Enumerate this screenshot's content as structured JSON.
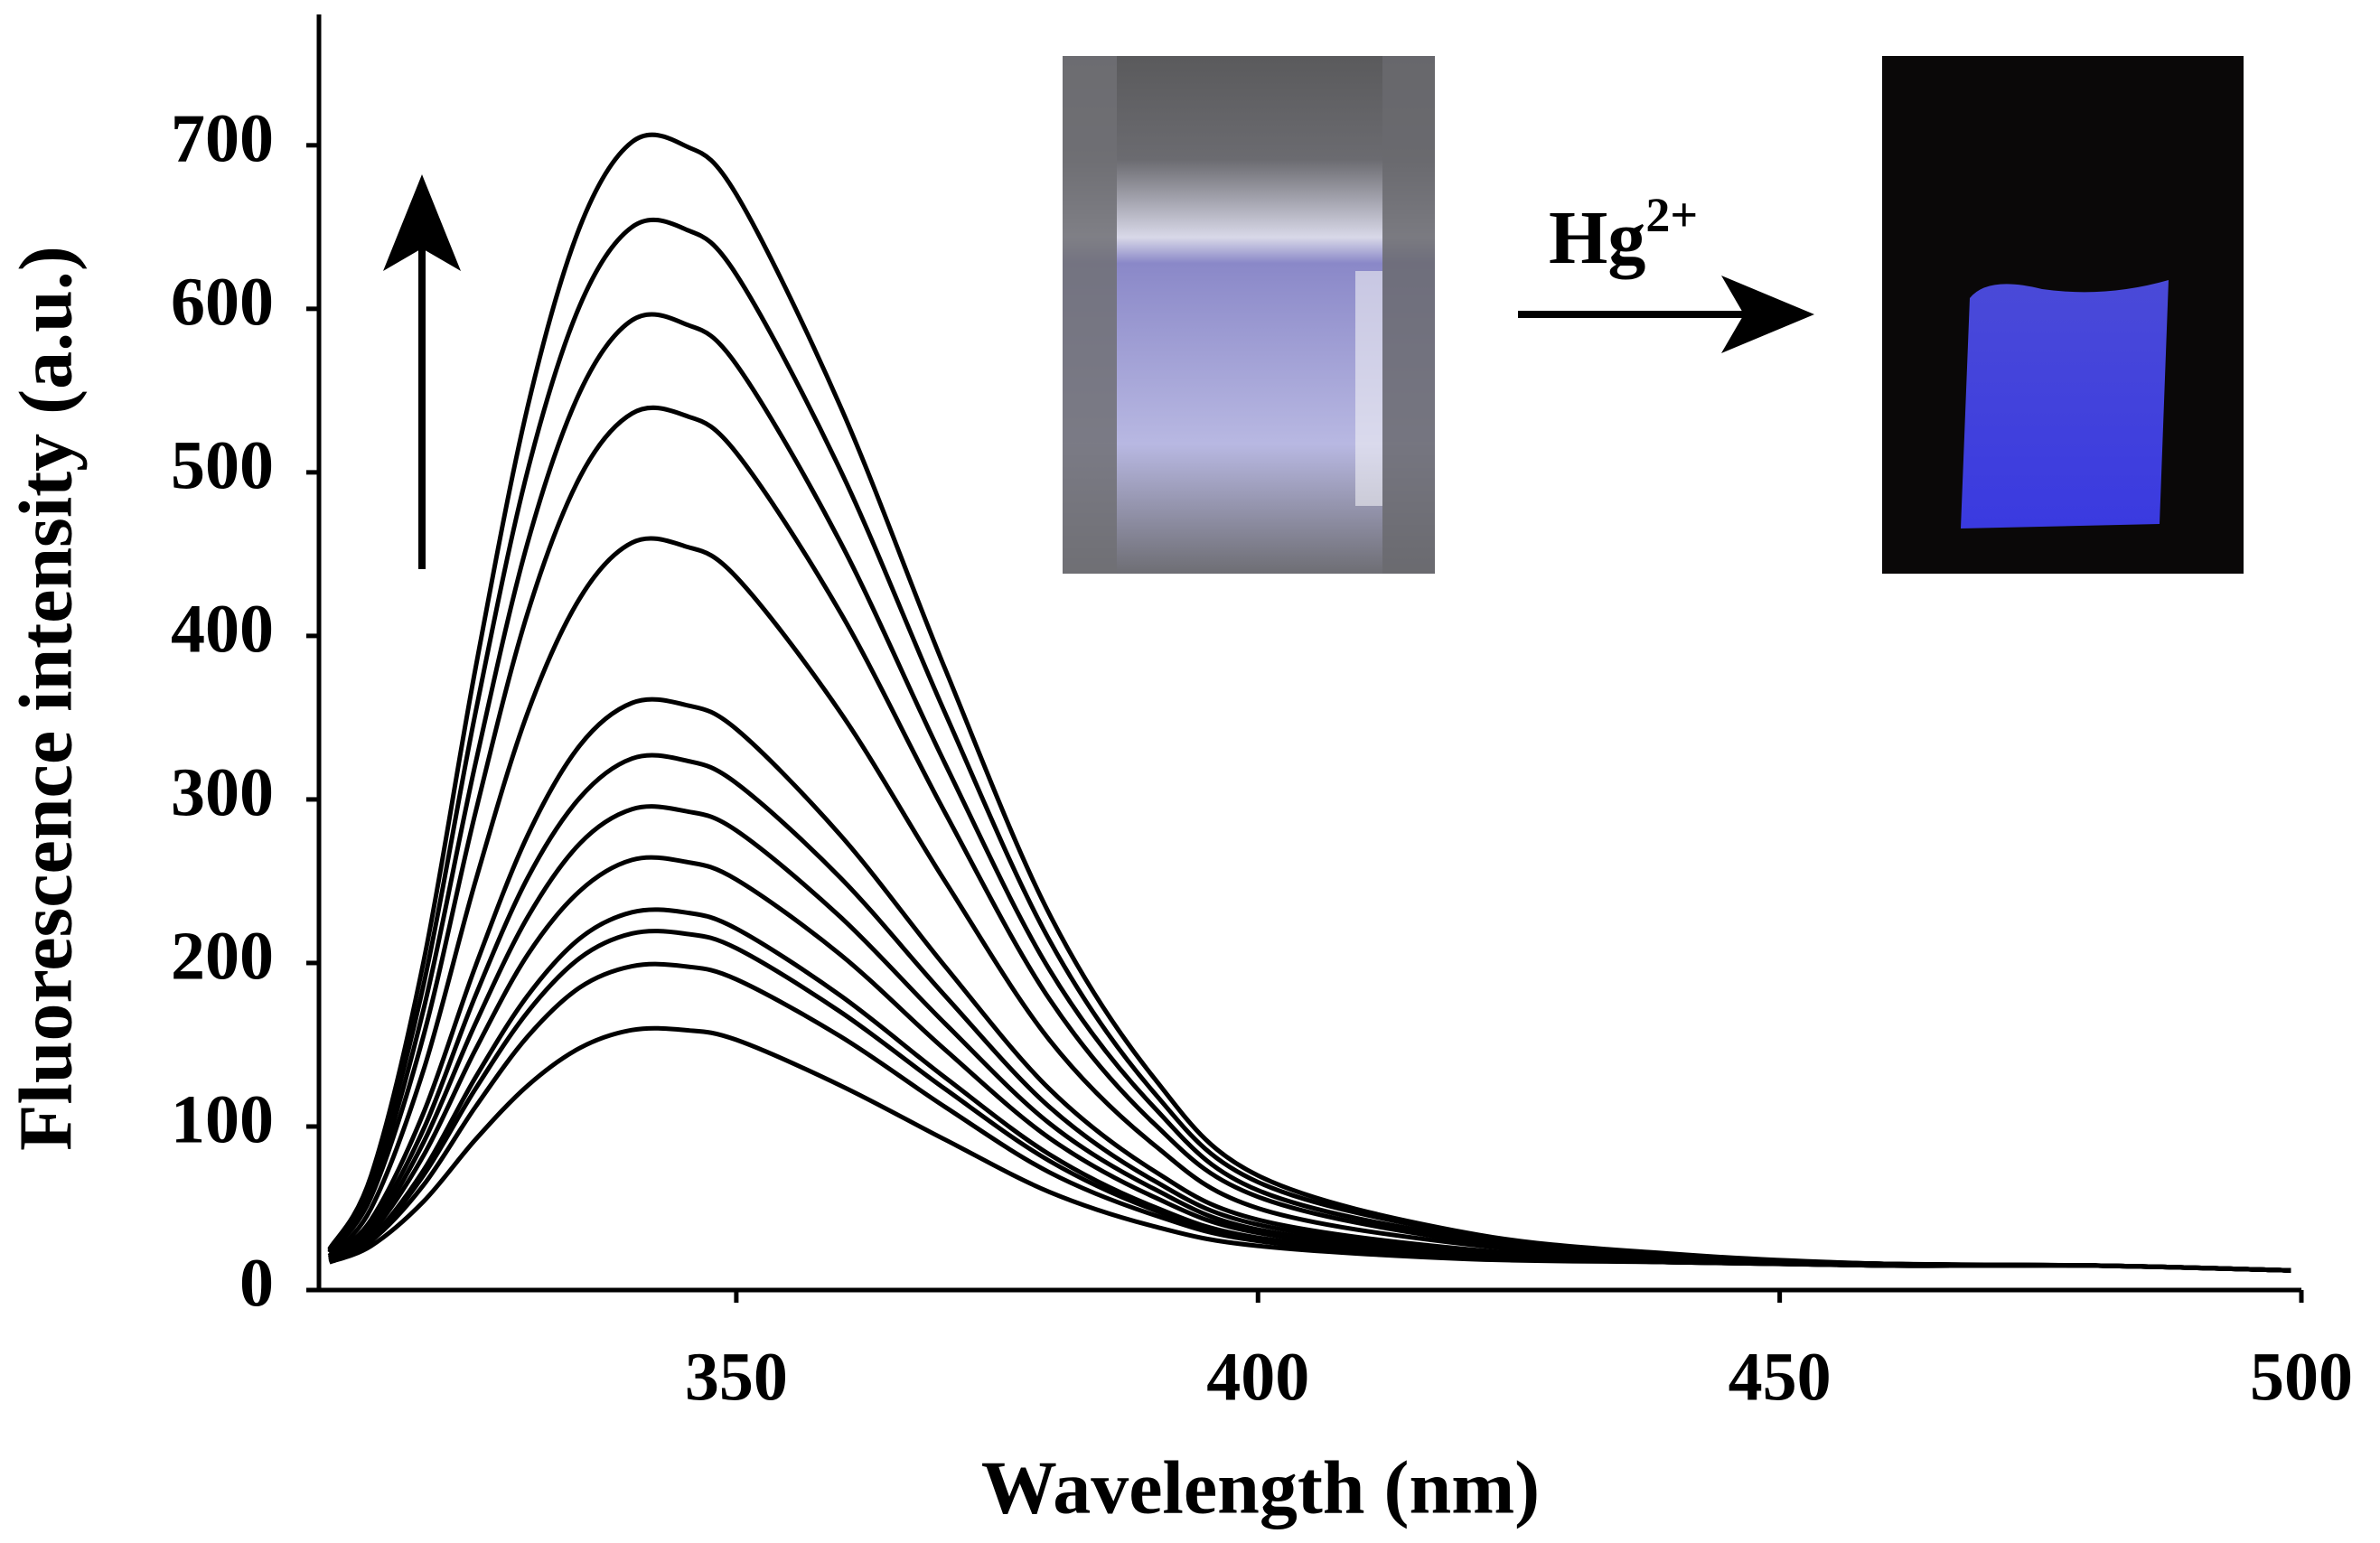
{
  "chart_data": {
    "type": "line",
    "x_label": "Wavelength (nm)",
    "y_label": "Fluorescence intensity (a.u.)",
    "annotation": {
      "text": "Hg",
      "superscript": "2+"
    },
    "color": "#000000",
    "x": [
      311,
      315,
      320,
      325,
      330,
      335,
      340,
      345,
      350,
      360,
      370,
      380,
      390,
      400,
      420,
      440,
      460,
      480,
      499
    ],
    "series": [
      {
        "values": [
          25,
          70,
          200,
          380,
          540,
          650,
          702,
          700,
          670,
          540,
          380,
          230,
          130,
          70,
          35,
          22,
          16,
          15,
          12
        ]
      },
      {
        "values": [
          24,
          66,
          186,
          353,
          501,
          602,
          650,
          649,
          621,
          501,
          353,
          214,
          121,
          66,
          34,
          21,
          16,
          15,
          12
        ]
      },
      {
        "values": [
          23,
          61,
          171,
          322,
          457,
          549,
          593,
          591,
          566,
          457,
          322,
          196,
          112,
          61,
          32,
          21,
          16,
          15,
          12
        ]
      },
      {
        "values": [
          23,
          57,
          155,
          292,
          414,
          497,
          536,
          535,
          512,
          414,
          292,
          178,
          102,
          57,
          30,
          20,
          16,
          15,
          12
        ]
      },
      {
        "values": [
          21,
          50,
          134,
          250,
          353,
          423,
          457,
          455,
          436,
          353,
          250,
          153,
          89,
          50,
          28,
          20,
          16,
          15,
          12
        ]
      },
      {
        "values": [
          20,
          43,
          108,
          198,
          278,
          333,
          359,
          358,
          343,
          278,
          198,
          123,
          73,
          43,
          25,
          19,
          16,
          15,
          12
        ]
      },
      {
        "values": [
          20,
          40,
          98,
          180,
          252,
          301,
          325,
          324,
          310,
          252,
          180,
          112,
          67,
          40,
          24,
          18,
          15,
          15,
          12
        ]
      },
      {
        "values": [
          19,
          37,
          90,
          163,
          228,
          273,
          294,
          293,
          281,
          228,
          163,
          102,
          62,
          37,
          23,
          18,
          15,
          15,
          12
        ]
      },
      {
        "values": [
          19,
          35,
          82,
          147,
          205,
          244,
          263,
          262,
          251,
          205,
          147,
          93,
          57,
          35,
          22,
          18,
          15,
          15,
          12
        ]
      },
      {
        "values": [
          18,
          32,
          73,
          130,
          180,
          215,
          231,
          231,
          221,
          180,
          130,
          83,
          51,
          32,
          21,
          17,
          15,
          15,
          12
        ]
      },
      {
        "values": [
          18,
          31,
          70,
          123,
          170,
          203,
          218,
          218,
          209,
          170,
          123,
          79,
          49,
          31,
          21,
          17,
          15,
          15,
          12
        ]
      },
      {
        "values": [
          18,
          30,
          64,
          112,
          155,
          185,
          198,
          198,
          190,
          155,
          112,
          72,
          46,
          30,
          20,
          17,
          15,
          15,
          12
        ]
      },
      {
        "values": [
          17,
          27,
          54,
          92,
          125,
          148,
          159,
          159,
          153,
          125,
          92,
          60,
          39,
          27,
          19,
          17,
          15,
          15,
          12
        ]
      }
    ],
    "xlim": [
      310,
      500
    ],
    "xticks": [
      350,
      400,
      450,
      500
    ],
    "ylim": [
      0,
      780
    ],
    "yticks": [
      0,
      100,
      200,
      300,
      400,
      500,
      600,
      700
    ],
    "grid": false
  }
}
